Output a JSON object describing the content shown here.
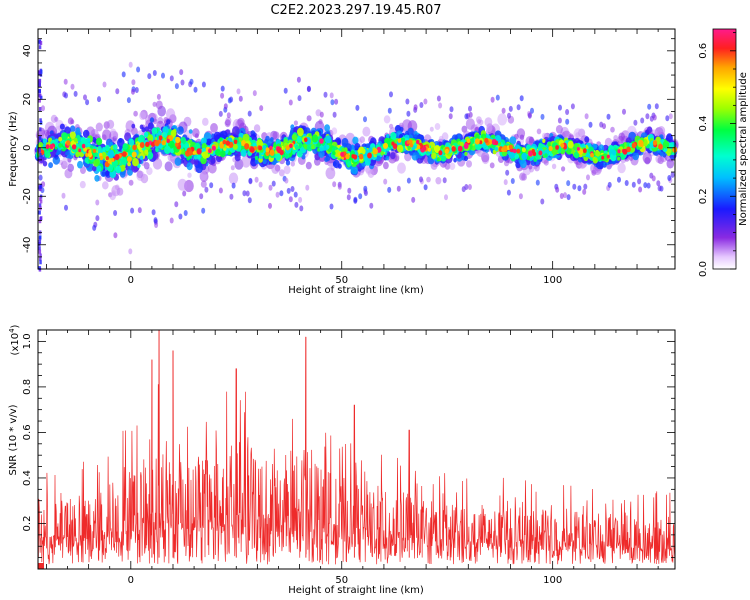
{
  "title": "C2E2.2023.297.19.45.R07",
  "chart_data": [
    {
      "type": "heatmap",
      "xlabel": "Height of straight line (km)",
      "ylabel": "Frequency (Hz)",
      "xlim": [
        -22,
        129
      ],
      "ylim": [
        -50,
        49
      ],
      "xticks": [
        0,
        50,
        100
      ],
      "yticks": [
        -40,
        -20,
        0,
        20,
        40
      ],
      "colorbar": {
        "label": "Normalized spectral amplitude",
        "range": [
          0,
          0.66
        ],
        "ticks": [
          0.0,
          0.2,
          0.4,
          0.6
        ]
      },
      "ridge": {
        "x": [
          -22,
          -10,
          0,
          10,
          20,
          30,
          40,
          50,
          60,
          70,
          80,
          90,
          100,
          110,
          120,
          129
        ],
        "frequency_center": [
          1,
          -2,
          -3,
          3,
          -1,
          0,
          2,
          -2,
          -1,
          1,
          0,
          1,
          -2,
          -1,
          -1,
          1
        ],
        "half_width": [
          8,
          12,
          14,
          11,
          9,
          8,
          9,
          8,
          8,
          7,
          7,
          7,
          7,
          6,
          6,
          6
        ]
      }
    },
    {
      "type": "line",
      "xlabel": "Height of straight line (km)",
      "ylabel": "SNR (10 * v/v)",
      "y_multiplier": "(x10",
      "y_multiplier_exp": "4",
      "multiplier_close": ")",
      "xlim": [
        -22,
        129
      ],
      "ylim": [
        0,
        1.05
      ],
      "xticks": [
        0,
        50,
        100
      ],
      "yticks": [
        0.2,
        0.4,
        0.6,
        0.8,
        1.0
      ],
      "color": "#ee2a2a",
      "envelope": {
        "x": [
          -22,
          -10,
          0,
          6,
          10,
          20,
          25,
          30,
          40,
          42,
          50,
          60,
          70,
          80,
          90,
          100,
          110,
          120,
          129
        ],
        "typical": [
          0.22,
          0.26,
          0.34,
          0.45,
          0.38,
          0.4,
          0.44,
          0.38,
          0.35,
          0.42,
          0.3,
          0.28,
          0.24,
          0.22,
          0.21,
          0.2,
          0.19,
          0.18,
          0.18
        ]
      },
      "peaks": [
        {
          "x": 5,
          "y": 0.92
        },
        {
          "x": 6.7,
          "y": 1.05
        },
        {
          "x": 10,
          "y": 0.96
        },
        {
          "x": 25,
          "y": 0.88
        },
        {
          "x": 41.5,
          "y": 1.02
        },
        {
          "x": 53,
          "y": 0.72
        },
        {
          "x": 66,
          "y": 0.61
        }
      ]
    }
  ]
}
